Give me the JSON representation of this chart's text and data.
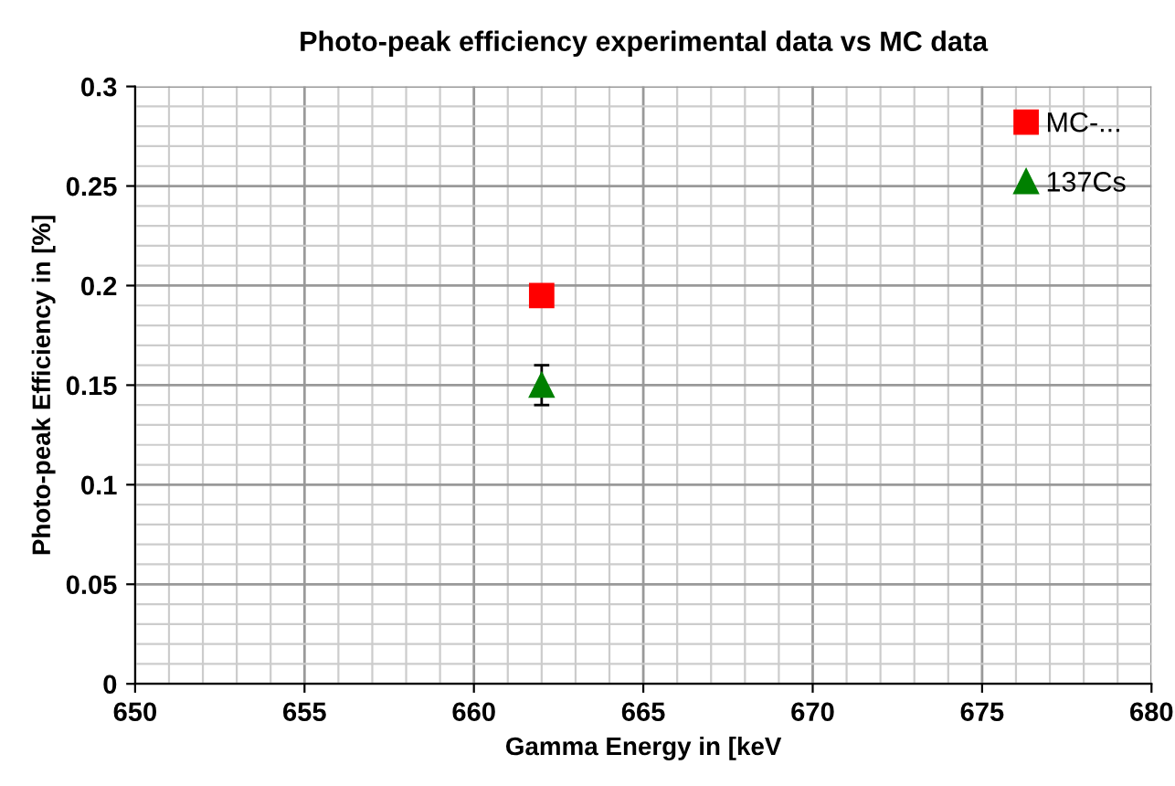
{
  "chart_data": {
    "type": "scatter",
    "title": "Photo-peak efficiency experimental data vs MC data",
    "xlabel": "Gamma Energy in [keV",
    "ylabel": "Photo-peak Efficiency in [%]",
    "series": [
      {
        "name": "MC-...",
        "color": "#ff0000",
        "marker": "square",
        "x": [
          662
        ],
        "values": [
          0.195
        ]
      },
      {
        "name": "137Cs",
        "color": "#008000",
        "marker": "triangle",
        "x": [
          662
        ],
        "values": [
          0.15
        ],
        "errors": [
          0.01
        ]
      }
    ],
    "xlim": [
      650,
      680
    ],
    "xticks": [
      650,
      655,
      660,
      665,
      670,
      675,
      680
    ],
    "ylim": [
      0,
      0.3
    ],
    "yticks": [
      0,
      0.05,
      0.1,
      0.15,
      0.2,
      0.25,
      0.3
    ],
    "grid": true,
    "legend": "top right"
  }
}
